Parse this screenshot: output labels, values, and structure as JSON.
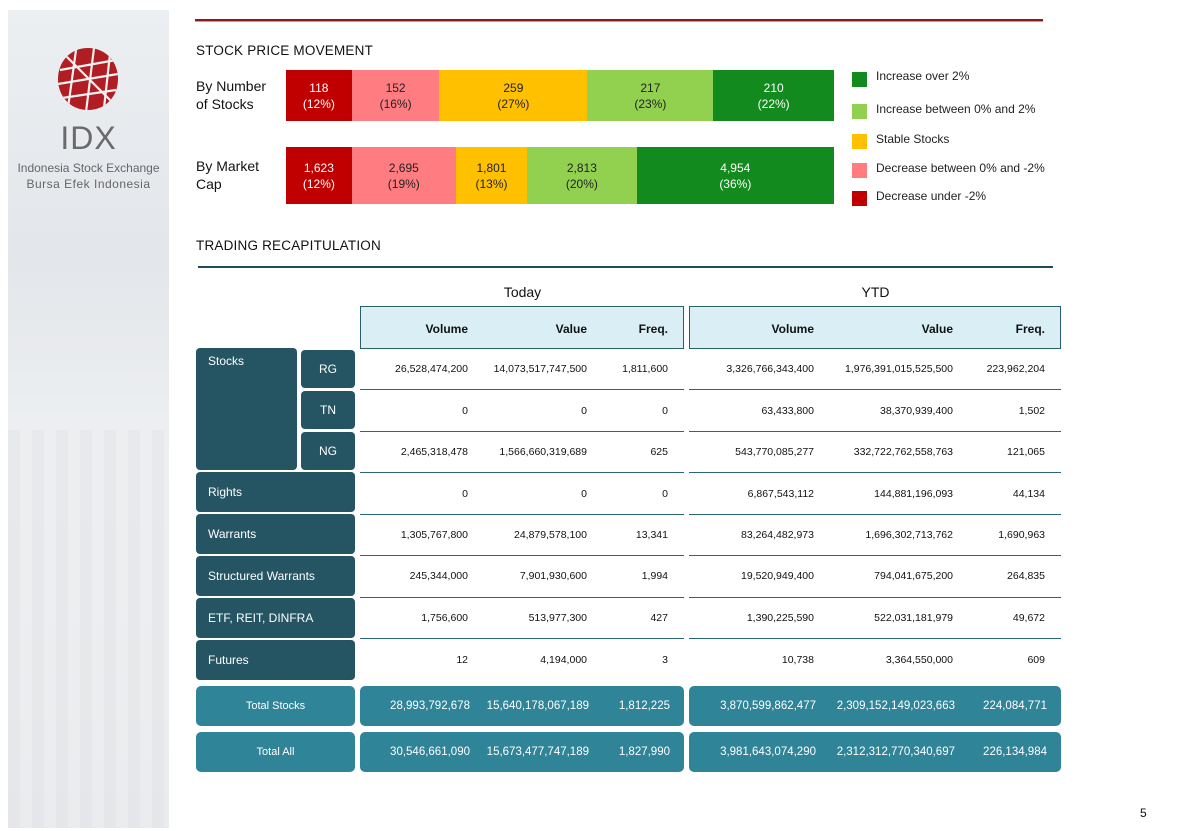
{
  "brand": {
    "logo_text": "IDX",
    "tagline_1": "Indonesia Stock Exchange",
    "tagline_2": "Bursa  Efek  Indonesia",
    "logo_icon": "idx-globe-logo"
  },
  "movement": {
    "title": "STOCK PRICE MOVEMENT",
    "by_number_label": "By Number of Stocks",
    "by_market_cap_label": "By Market Cap",
    "by_number": [
      {
        "value": "118",
        "pct": "(12%)",
        "share": 0.12,
        "color": "#c00000"
      },
      {
        "value": "152",
        "pct": "(16%)",
        "share": 0.16,
        "color": "#ff7c80"
      },
      {
        "value": "259",
        "pct": "(27%)",
        "share": 0.27,
        "color": "#ffc000"
      },
      {
        "value": "217",
        "pct": "(23%)",
        "share": 0.23,
        "color": "#92d050"
      },
      {
        "value": "210",
        "pct": "(22%)",
        "share": 0.22,
        "color": "#138a1d"
      }
    ],
    "by_market_cap": [
      {
        "value": "1,623",
        "pct": "(12%)",
        "share": 0.12,
        "color": "#c00000"
      },
      {
        "value": "2,695",
        "pct": "(19%)",
        "share": 0.19,
        "color": "#ff7c80"
      },
      {
        "value": "1,801",
        "pct": "(13%)",
        "share": 0.13,
        "color": "#ffc000"
      },
      {
        "value": "2,813",
        "pct": "(20%)",
        "share": 0.2,
        "color": "#92d050"
      },
      {
        "value": "4,954",
        "pct": "(36%)",
        "share": 0.36,
        "color": "#138a1d"
      }
    ],
    "legend": [
      {
        "label": "Increase over 2%",
        "color": "#138a1d"
      },
      {
        "label": "Increase between 0% and 2%",
        "color": "#92d050"
      },
      {
        "label": "Stable Stocks",
        "color": "#ffc000"
      },
      {
        "label": "Decrease between 0% and -2%",
        "color": "#ff7c80"
      },
      {
        "label": "Decrease under -2%",
        "color": "#c00000"
      }
    ]
  },
  "recap": {
    "title": "TRADING RECAPITULATION",
    "group_today": "Today",
    "group_ytd": "YTD",
    "col_volume": "Volume",
    "col_value": "Value",
    "col_freq": "Freq.",
    "stocks_label": "Stocks",
    "sub_rg": "RG",
    "sub_tn": "TN",
    "sub_ng": "NG",
    "rows": [
      {
        "key": "rg",
        "today": [
          "26,528,474,200",
          "14,073,517,747,500",
          "1,811,600"
        ],
        "ytd": [
          "3,326,766,343,400",
          "1,976,391,015,525,500",
          "223,962,204"
        ]
      },
      {
        "key": "tn",
        "today": [
          "0",
          "0",
          "0"
        ],
        "ytd": [
          "63,433,800",
          "38,370,939,400",
          "1,502"
        ]
      },
      {
        "key": "ng",
        "today": [
          "2,465,318,478",
          "1,566,660,319,689",
          "625"
        ],
        "ytd": [
          "543,770,085,277",
          "332,722,762,558,763",
          "121,065"
        ]
      },
      {
        "key": "rights",
        "label": "Rights",
        "today": [
          "0",
          "0",
          "0"
        ],
        "ytd": [
          "6,867,543,112",
          "144,881,196,093",
          "44,134"
        ]
      },
      {
        "key": "warrants",
        "label": "Warrants",
        "today": [
          "1,305,767,800",
          "24,879,578,100",
          "13,341"
        ],
        "ytd": [
          "83,264,482,973",
          "1,696,302,713,762",
          "1,690,963"
        ]
      },
      {
        "key": "structured",
        "label": "Structured Warrants",
        "today": [
          "245,344,000",
          "7,901,930,600",
          "1,994"
        ],
        "ytd": [
          "19,520,949,400",
          "794,041,675,200",
          "264,835"
        ]
      },
      {
        "key": "etf",
        "label": "ETF, REIT, DINFRA",
        "today": [
          "1,756,600",
          "513,977,300",
          "427"
        ],
        "ytd": [
          "1,390,225,590",
          "522,031,181,979",
          "49,672"
        ]
      },
      {
        "key": "futures",
        "label": "Futures",
        "today": [
          "12",
          "4,194,000",
          "3"
        ],
        "ytd": [
          "10,738",
          "3,364,550,000",
          "609"
        ]
      }
    ],
    "totals": [
      {
        "label": "Total Stocks",
        "today": [
          "28,993,792,678",
          "15,640,178,067,189",
          "1,812,225"
        ],
        "ytd": [
          "3,870,599,862,477",
          "2,309,152,149,023,663",
          "224,084,771"
        ]
      },
      {
        "label": "Total All",
        "today": [
          "30,546,661,090",
          "15,673,477,747,189",
          "1,827,990"
        ],
        "ytd": [
          "3,981,643,074,290",
          "2,312,312,770,340,697",
          "226,134,984"
        ]
      }
    ]
  },
  "page_number": "5"
}
